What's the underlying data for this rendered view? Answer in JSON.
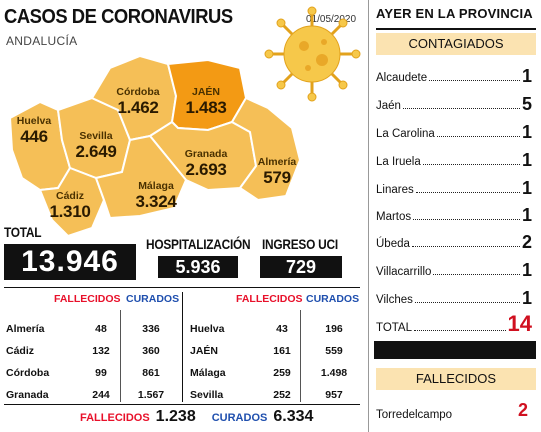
{
  "map": {
    "title": "CASOS DE CORONAVIRUS",
    "date": "01/05/2020",
    "region": "ANDALUCÍA",
    "provinces": [
      {
        "id": "huelva",
        "name": "Huelva",
        "value": "446"
      },
      {
        "id": "sevilla",
        "name": "Sevilla",
        "value": "2.649"
      },
      {
        "id": "cordoba",
        "name": "Córdoba",
        "value": "1.462"
      },
      {
        "id": "jaen",
        "name": "JAÉN",
        "value": "1.483"
      },
      {
        "id": "granada",
        "name": "Granada",
        "value": "2.693"
      },
      {
        "id": "almeria",
        "name": "Almería",
        "value": "579"
      },
      {
        "id": "cadiz",
        "name": "Cádiz",
        "value": "1.310"
      },
      {
        "id": "malaga",
        "name": "Málaga",
        "value": "3.324"
      }
    ],
    "colors": {
      "map": "#f5bf57",
      "jaen": "#f39a14",
      "virus": "#f6c84a",
      "border": "#ffffff"
    }
  },
  "totals": {
    "total_label": "TOTAL",
    "total_value": "13.946",
    "hosp_label": "HOSPITALIZACIÓN",
    "hosp_value": "5.936",
    "uci_label": "INGRESO UCI",
    "uci_value": "729"
  },
  "table": {
    "fallecidos_label": "FALLECIDOS",
    "curados_label": "CURADOS",
    "left_rows": [
      {
        "name": "Almería",
        "fallecidos": "48",
        "curados": "336"
      },
      {
        "name": "Cádiz",
        "fallecidos": "132",
        "curados": "360"
      },
      {
        "name": "Córdoba",
        "fallecidos": "99",
        "curados": "861"
      },
      {
        "name": "Granada",
        "fallecidos": "244",
        "curados": "1.567"
      }
    ],
    "right_rows": [
      {
        "name": "Huelva",
        "fallecidos": "43",
        "curados": "196"
      },
      {
        "name": "JAÉN",
        "fallecidos": "161",
        "curados": "559"
      },
      {
        "name": "Málaga",
        "fallecidos": "259",
        "curados": "1.498"
      },
      {
        "name": "Sevilla",
        "fallecidos": "252",
        "curados": "957"
      }
    ],
    "footer": {
      "fallecidos_label": "FALLECIDOS",
      "fallecidos_total": "1.238",
      "curados_label": "CURADOS",
      "curados_total": "6.334"
    }
  },
  "province_panel": {
    "title": "AYER EN LA PROVINCIA",
    "contagiados_label": "CONTAGIADOS",
    "contagiados": [
      {
        "name": "Alcaudete",
        "value": "1"
      },
      {
        "name": "Jaén",
        "value": "5"
      },
      {
        "name": "La Carolina",
        "value": "1"
      },
      {
        "name": "La Iruela",
        "value": "1"
      },
      {
        "name": "Linares",
        "value": "1"
      },
      {
        "name": "Martos",
        "value": "1"
      },
      {
        "name": "Úbeda",
        "value": "2"
      },
      {
        "name": "Villacarrillo",
        "value": "1"
      },
      {
        "name": "Vilches",
        "value": "1"
      }
    ],
    "total_label": "TOTAL",
    "total_value": "14",
    "fallecidos_label": "FALLECIDOS",
    "fallecidos": [
      {
        "name": "Torredelcampo",
        "value": "2"
      }
    ],
    "colors": {
      "tag_bg": "#fbe3b1",
      "value_red": "#d01020"
    }
  }
}
